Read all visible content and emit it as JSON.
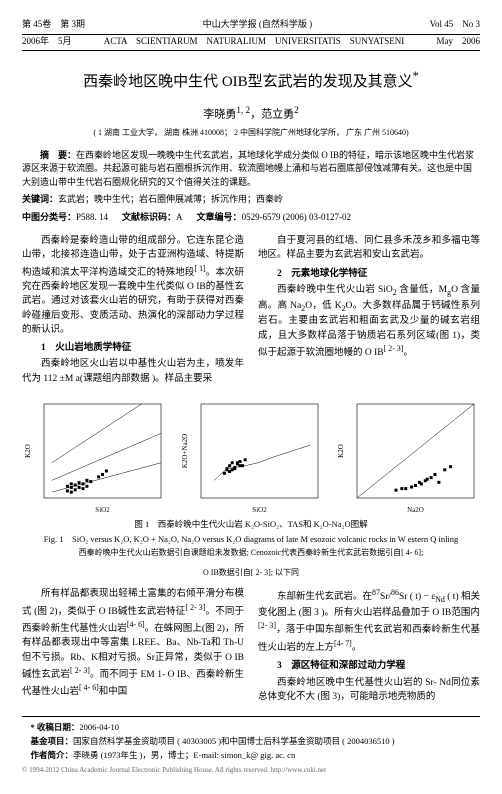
{
  "header": {
    "vol_issue_cn": "第 45卷　第 3期",
    "journal_cn": "中山大学学报 (自然科学版 )",
    "vol_issue_en": "Vol 45　No 3",
    "date_cn": "2006年　5月",
    "journal_en": "ACTA　SCIENTIARUM　NATURALIUM　UNIVERSITATIS　SUNYATSENI",
    "date_en": "May　2006"
  },
  "title": "西秦岭地区晚中生代 OIB型玄武岩的发现及其意义",
  "title_sup": "*",
  "authors": "李晓勇",
  "author1_sup": "1, 2",
  "author2": "，范立勇",
  "author2_sup": "2",
  "affil": "( 1  湖南 工业大学， 湖南 株洲 410008； 2  中国科学院广州地球化学所， 广东 广州 510640)",
  "abstract_label": "摘　要：",
  "abstract": "在西秦岭地区发现一晚晚中生代玄武岩，其地球化学成分类似 O IB的特征，暗示该地区晚中生代岩浆源区来源于软流圈。共起源可能与岩石圈根拆沉作用、软流圈地幔上涌和与岩石圈底部侵蚀减薄有关。这也是中国大别造山带中生代岩石圈规化研究的又个值得关注的课题。",
  "kw_label": "关键词：",
  "kw": "玄武岩；晚中生代；岩石圈伸展减薄；拆沉作用；西秦岭",
  "class": {
    "clc_label": "中图分类号：",
    "clc": "P588. 14",
    "doc_label": "文献标识码：",
    "doc": "A",
    "art_label": "文章编号：",
    "art": "0529-6579 (2006) 03-0127-02"
  },
  "col1": {
    "p1": "西秦岭是秦岭造山带的组成部分。它连东昆仑造山带，北接祁连造山带，处于古亚洲构造域、特提斯构造域和滨太平洋构造域交汇的特殊地段",
    "sup1": "[ 1]",
    "p1b": "。本次研究在西秦岭地区发现一套晚中生代类似 O IB的基性玄武岩。通过对该套火山岩的研究，有助于获得对西秦岭碰撞后变形、变质活动、热演化的深部动力学过程的新认识。",
    "h1": "1　火山岩地质学特征",
    "p2": "西秦岭地区火山岩以中基性火山岩为主，喷发年代为 112 ±M a(课题组内部数据 )。样品主要采"
  },
  "col2": {
    "p1": "自于夏河县的红墙、同仁县多禾茂乡和多福屯等地区。样品主要为玄武岩和安山玄武岩。",
    "h1": "2　元素地球化学特征",
    "p2": "西秦岭晚中生代火山岩 SiO",
    "sub1": "2",
    "p2b": " 含量低，M",
    "sub2": "g",
    "p2c": "O 含量高。高 Na",
    "sub3": "2",
    "p2d": "O，低 K",
    "sub4": "2",
    "p2e": "O。大多数样品属于钙碱性系列岩石。主要由玄武岩和粗面玄武及少量的碱玄岩组成，且大多数样品落于钠质岩石系列区域(图 1)，类似于起源于软流圈地幔的 O IB",
    "sup1": "[ 2- 3]",
    "p2f": "。"
  },
  "figure": {
    "caption_cn": "图 1　西秦岭晚中生代火山岩 K₂O-SiO₂、TAS和 K₂O-Na₂O图解",
    "caption_en": "Fig. 1　SiO₂ versus K₂O, K₂O + Na₂O, Na₂O versus K₂O diagrams of late M esozoic volcanic rocks in W estern Q inling",
    "sub": "西秦岭晚中生代火山岩数据引自课题组未发数据; Cenozoic代表西秦岭新生代玄武岩数据引自[ 4- 6];",
    "sub2": "O IB数据引自[ 2- 3]; 以下同",
    "panels": {
      "bg": "#ffffff",
      "border": "#000000",
      "grid": "#cccccc",
      "point_fill": "#000000",
      "point_stroke": "#000000",
      "width": 145,
      "height": 118,
      "panel1": {
        "xlabel": "SiO2",
        "ylabel": "K2O",
        "points": [
          [
            46,
            0.6
          ],
          [
            47,
            0.9
          ],
          [
            48,
            1.1
          ],
          [
            49,
            1.3
          ],
          [
            50,
            0.8
          ],
          [
            51,
            1.0
          ],
          [
            52,
            1.4
          ],
          [
            47,
            0.5
          ],
          [
            48,
            0.7
          ],
          [
            49,
            0.9
          ],
          [
            50,
            1.2
          ],
          [
            51,
            1.5
          ],
          [
            46,
            1.0
          ],
          [
            47,
            1.2
          ],
          [
            55,
            2.0
          ],
          [
            56,
            2.3
          ],
          [
            54,
            1.8
          ]
        ],
        "line_segments": [
          [
            [
              42,
              0.5
            ],
            [
              70,
              3.0
            ]
          ],
          [
            [
              42,
              1.5
            ],
            [
              70,
              5.5
            ]
          ],
          [
            [
              42,
              3.0
            ],
            [
              65,
              8.0
            ]
          ]
        ]
      },
      "panel2": {
        "xlabel": "SiO2",
        "ylabel": "K2O+Na2O",
        "points": [
          [
            45,
            5
          ],
          [
            46,
            5.5
          ],
          [
            47,
            6
          ],
          [
            48,
            5.2
          ],
          [
            49,
            5.8
          ],
          [
            50,
            6.2
          ],
          [
            51,
            5.5
          ],
          [
            52,
            6.5
          ],
          [
            47,
            4.8
          ],
          [
            48,
            5.0
          ],
          [
            49,
            6.0
          ],
          [
            50,
            5.5
          ],
          [
            46,
            4.5
          ],
          [
            45,
            4.8
          ],
          [
            44,
            4.2
          ]
        ],
        "boundary": [
          [
            40,
            3
          ],
          [
            45,
            5
          ],
          [
            52,
            5.5
          ],
          [
            57,
            6
          ],
          [
            63,
            7
          ],
          [
            70,
            8
          ],
          [
            77,
            9
          ]
        ]
      },
      "panel3": {
        "xlabel": "Na2O",
        "ylabel": "K2O",
        "points": [
          [
            2.5,
            0.6
          ],
          [
            3.0,
            0.8
          ],
          [
            3.2,
            1.0
          ],
          [
            3.5,
            1.1
          ],
          [
            3.8,
            1.3
          ],
          [
            4.0,
            1.5
          ],
          [
            3.3,
            0.9
          ],
          [
            2.8,
            0.7
          ],
          [
            3.6,
            1.2
          ],
          [
            4.2,
            1.0
          ],
          [
            2.0,
            0.5
          ],
          [
            2.3,
            0.6
          ],
          [
            4.5,
            1.8
          ],
          [
            4.8,
            2.0
          ]
        ],
        "diag": [
          [
            0,
            0
          ],
          [
            6,
            6
          ]
        ]
      }
    }
  },
  "col3": {
    "p1": "所有样品都表现出轻稀土富集的右倾平滑分布模式 (图 2)，类似于 O IB碱性玄武岩特征",
    "sup1": "[ 2- 3]",
    "p1b": "。不同于西秦岭新生代基性火山岩",
    "sup2": "[4- 6]",
    "p1c": "。在蛛网图上(图 2)，所有样品都表现出中等富集 LREE、Ba、Nb-Ta和 Th-U 但不亏损。Rb、K相对亏损。Sr正异常，类似于 O IB碱性玄武岩",
    "sup3": "[ 2- 3]",
    "p1d": "。而不同于 EM 1- O IB、西秦岭新生代基性火山岩",
    "sup4": "[ 4- 6]",
    "p1e": "和中国"
  },
  "col4": {
    "p1": "东部新生代玄武岩。在",
    "sup1": "87",
    "p1b": "Sr/",
    "sup2": "86",
    "p1c": "Sr ( t) − ε",
    "sub1": "Nd",
    "p1d": " ( t) 相关变化图上 (图 3 )。所有火山岩样品叠加于 O IB范围内",
    "sup3": "[2- 3]",
    "p1e": "，落于中国东部新生代玄武岩和西秦岭新生代基性火山岩的左上方",
    "sup4": "[4- 7]",
    "p1f": "。",
    "h1": "3　源区特征和深部过动力学程",
    "p2": "西秦岭地区晚中生代基性火山岩的 Sr- Nd同位素总体变化不大 (图 3)，可能暗示地壳物质的"
  },
  "foot": {
    "date_label": "* 收稿日期：",
    "date": "2006-04-10",
    "fund_label": "基金项目：",
    "fund": "国家自然科学基金资助项目 ( 40303005 )和中国博士后科学基金资助项目 ( 2004036510 )",
    "author_label": "作者简介：",
    "author": "李晓勇 (1973年生 )，男，博士；E-mail: simon_k@ gig. ac. cn",
    "bottom": "© 1994-2012 China Academic Journal Electronic Publishing House. All rights reserved.    http://www.cnki.net"
  }
}
